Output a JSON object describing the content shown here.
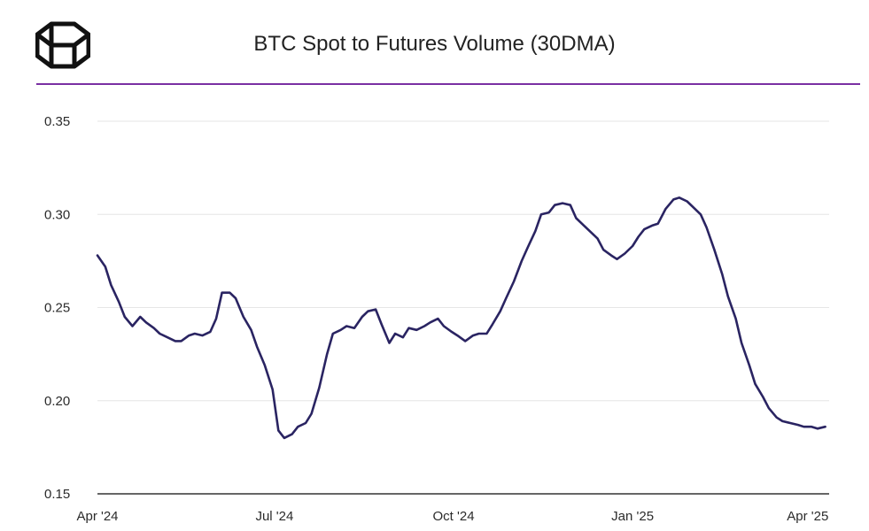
{
  "header": {
    "title": "BTC Spot to Futures Volume (30DMA)",
    "logo_icon": "cube-logo-icon"
  },
  "colors": {
    "line": "#2a2462",
    "accent_rule": "#7a2fa3",
    "grid": "#e6e6e6",
    "axis": "#333333"
  },
  "chart_data": {
    "type": "line",
    "title": "BTC Spot to Futures Volume (30DMA)",
    "xlabel": "",
    "ylabel": "",
    "ylim": [
      0.15,
      0.35
    ],
    "grid": true,
    "yticks": [
      0.15,
      0.2,
      0.25,
      0.3,
      0.35
    ],
    "ytick_labels": [
      "0.15",
      "0.20",
      "0.25",
      "0.30",
      "0.35"
    ],
    "xticks": [
      "2024-04-01",
      "2024-07-01",
      "2024-10-01",
      "2025-01-01",
      "2025-04-01"
    ],
    "xtick_labels": [
      "Apr '24",
      "Jul '24",
      "Oct '24",
      "Jan '25",
      "Apr '25"
    ],
    "xlim": [
      "2024-04-01",
      "2025-04-12"
    ],
    "series": [
      {
        "x": [
          "2024-04-01",
          "2024-04-05",
          "2024-04-08",
          "2024-04-12",
          "2024-04-15",
          "2024-04-19",
          "2024-04-23",
          "2024-04-26",
          "2024-04-30",
          "2024-05-03",
          "2024-05-07",
          "2024-05-11",
          "2024-05-14",
          "2024-05-18",
          "2024-05-21",
          "2024-05-25",
          "2024-05-29",
          "2024-06-01",
          "2024-06-04",
          "2024-06-08",
          "2024-06-11",
          "2024-06-15",
          "2024-06-19",
          "2024-06-22",
          "2024-06-26",
          "2024-06-30",
          "2024-07-03",
          "2024-07-06",
          "2024-07-10",
          "2024-07-13",
          "2024-07-17",
          "2024-07-20",
          "2024-07-24",
          "2024-07-28",
          "2024-07-31",
          "2024-08-04",
          "2024-08-07",
          "2024-08-11",
          "2024-08-15",
          "2024-08-18",
          "2024-08-22",
          "2024-08-25",
          "2024-08-29",
          "2024-09-01",
          "2024-09-05",
          "2024-09-08",
          "2024-09-12",
          "2024-09-16",
          "2024-09-19",
          "2024-09-23",
          "2024-09-26",
          "2024-09-30",
          "2024-10-03",
          "2024-10-07",
          "2024-10-11",
          "2024-10-14",
          "2024-10-18",
          "2024-10-21",
          "2024-10-25",
          "2024-10-28",
          "2024-11-01",
          "2024-11-05",
          "2024-11-08",
          "2024-11-12",
          "2024-11-15",
          "2024-11-19",
          "2024-11-22",
          "2024-11-26",
          "2024-11-30",
          "2024-12-03",
          "2024-12-07",
          "2024-12-10",
          "2024-12-14",
          "2024-12-17",
          "2024-12-21",
          "2024-12-24",
          "2024-12-28",
          "2025-01-01",
          "2025-01-04",
          "2025-01-07",
          "2025-01-11",
          "2025-01-14",
          "2025-01-18",
          "2025-01-22",
          "2025-01-25",
          "2025-01-29",
          "2025-02-01",
          "2025-02-05",
          "2025-02-08",
          "2025-02-12",
          "2025-02-16",
          "2025-02-19",
          "2025-02-23",
          "2025-02-26",
          "2025-03-02",
          "2025-03-05",
          "2025-03-09",
          "2025-03-12",
          "2025-03-16",
          "2025-03-19",
          "2025-03-23",
          "2025-03-27",
          "2025-03-30",
          "2025-04-03",
          "2025-04-06",
          "2025-04-10"
        ],
        "values": [
          0.278,
          0.272,
          0.262,
          0.253,
          0.245,
          0.24,
          0.245,
          0.242,
          0.239,
          0.236,
          0.234,
          0.232,
          0.232,
          0.235,
          0.236,
          0.235,
          0.237,
          0.244,
          0.258,
          0.258,
          0.255,
          0.245,
          0.238,
          0.229,
          0.219,
          0.206,
          0.184,
          0.18,
          0.182,
          0.186,
          0.188,
          0.193,
          0.207,
          0.225,
          0.236,
          0.238,
          0.24,
          0.239,
          0.245,
          0.248,
          0.249,
          0.241,
          0.231,
          0.236,
          0.234,
          0.239,
          0.238,
          0.24,
          0.242,
          0.244,
          0.24,
          0.237,
          0.235,
          0.232,
          0.235,
          0.236,
          0.236,
          0.241,
          0.248,
          0.255,
          0.264,
          0.275,
          0.282,
          0.291,
          0.3,
          0.301,
          0.305,
          0.306,
          0.305,
          0.298,
          0.294,
          0.291,
          0.287,
          0.281,
          0.278,
          0.276,
          0.279,
          0.283,
          0.288,
          0.292,
          0.294,
          0.295,
          0.303,
          0.308,
          0.309,
          0.307,
          0.304,
          0.3,
          0.293,
          0.281,
          0.268,
          0.256,
          0.244,
          0.231,
          0.219,
          0.209,
          0.202,
          0.196,
          0.191,
          0.189,
          0.188,
          0.187,
          0.186,
          0.186,
          0.185,
          0.186
        ]
      }
    ]
  }
}
